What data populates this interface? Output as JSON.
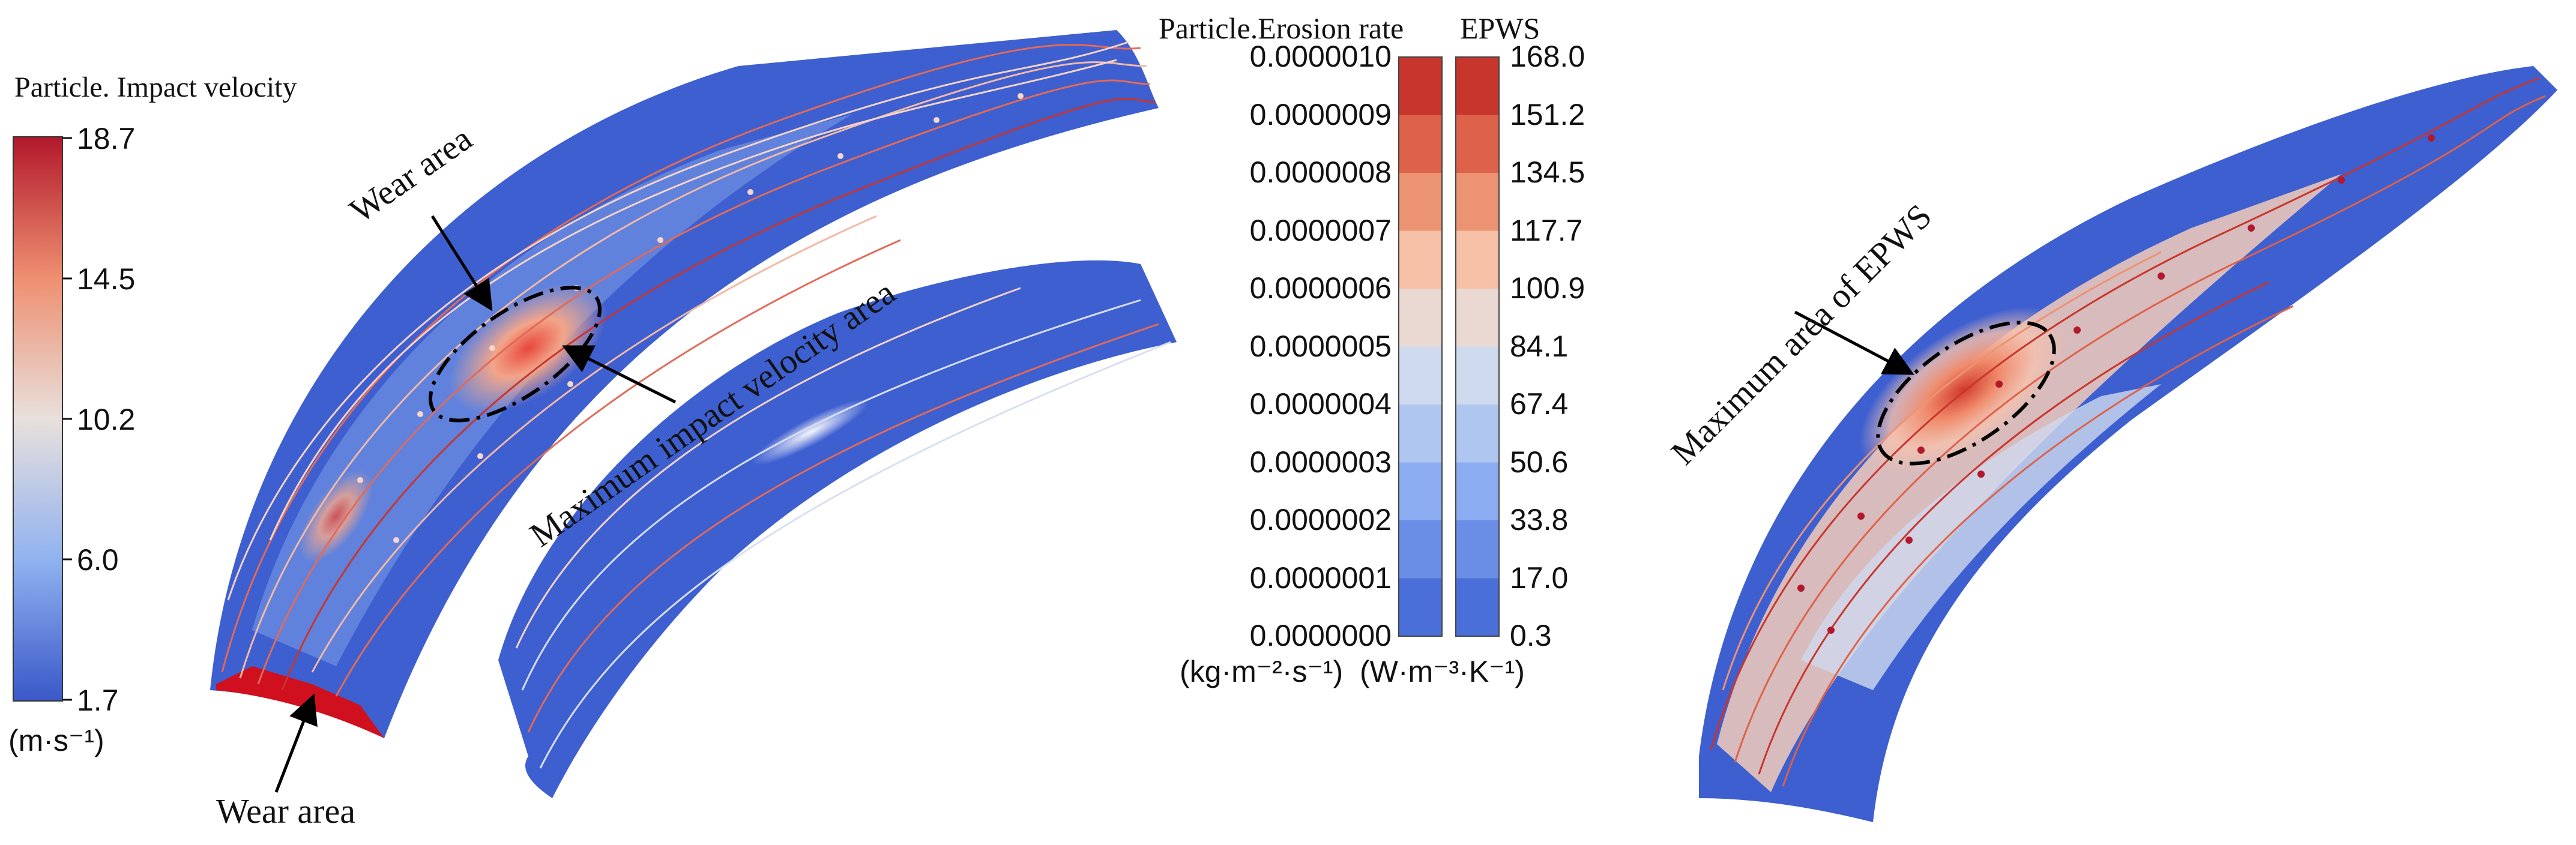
{
  "impact_legend": {
    "title": "Particle. Impact velocity",
    "unit": "(m·s⁻¹)",
    "ticks": [
      "18.7",
      "14.5",
      "10.2",
      "6.0",
      "1.7"
    ],
    "color_top": "#b2182b",
    "color_mid": "#e8e0dc",
    "color_bottom": "#3a58c8"
  },
  "erosion_legend": {
    "title": "Particle.Erosion rate",
    "unit": "(kg·m⁻²·s⁻¹)",
    "ticks": [
      "0.0000010",
      "0.0000009",
      "0.0000008",
      "0.0000007",
      "0.0000006",
      "0.0000005",
      "0.0000004",
      "0.0000003",
      "0.0000002",
      "0.0000001",
      "0.0000000"
    ]
  },
  "epws_legend": {
    "title": "EPWS",
    "unit": "(W·m⁻³·K⁻¹)",
    "ticks": [
      "168.0",
      "151.2",
      "134.5",
      "117.7",
      "100.9",
      "84.1",
      "67.4",
      "50.6",
      "33.8",
      "17.0",
      "0.3"
    ]
  },
  "band_colors": [
    "#c8352c",
    "#dd6249",
    "#ec9373",
    "#f5c0a6",
    "#e9d9d2",
    "#cfdaee",
    "#afc6f0",
    "#8cacf2",
    "#6a8ee6",
    "#4b6fd8"
  ],
  "annotations": {
    "wear_area_top": "Wear area",
    "wear_area_bottom": "Wear area",
    "max_impact": "Maximum impact velocity area",
    "max_epws": "Maximum area of EPWS"
  }
}
